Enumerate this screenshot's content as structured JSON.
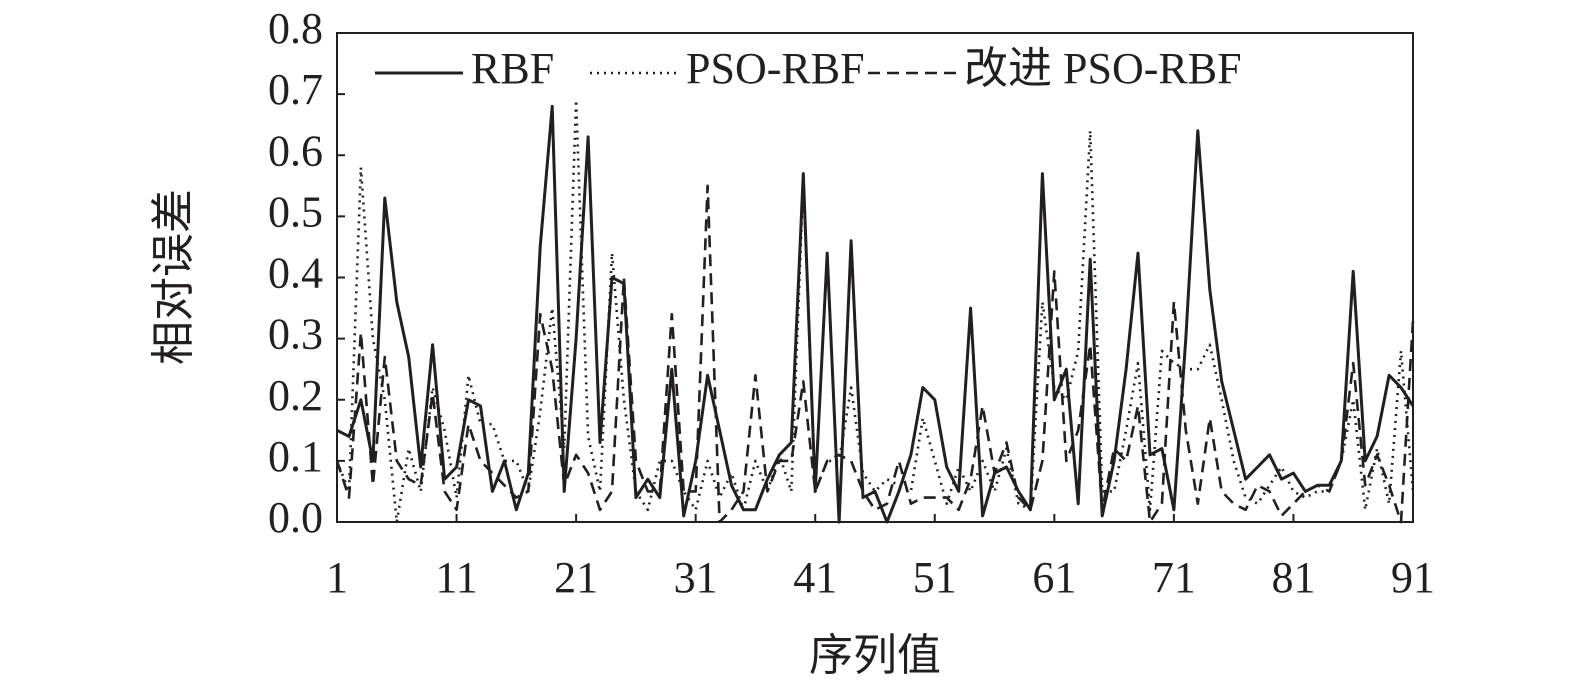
{
  "chart_data": {
    "type": "line",
    "xlabel": "序列值",
    "ylabel": "相对误差",
    "x": [
      1,
      2,
      3,
      4,
      5,
      6,
      7,
      8,
      9,
      10,
      11,
      12,
      13,
      14,
      15,
      16,
      17,
      18,
      19,
      20,
      21,
      22,
      23,
      24,
      25,
      26,
      27,
      28,
      29,
      30,
      31,
      32,
      33,
      34,
      35,
      36,
      37,
      38,
      39,
      40,
      41,
      42,
      43,
      44,
      45,
      46,
      47,
      48,
      49,
      50,
      51,
      52,
      53,
      54,
      55,
      56,
      57,
      58,
      59,
      60,
      61,
      62,
      63,
      64,
      65,
      66,
      67,
      68,
      69,
      70,
      71,
      72,
      73,
      74,
      75,
      76,
      77,
      78,
      79,
      80,
      81,
      82,
      83,
      84,
      85,
      86,
      87,
      88,
      89,
      90,
      91
    ],
    "xlim": [
      1,
      91
    ],
    "xticks": [
      1,
      11,
      21,
      31,
      41,
      51,
      61,
      71,
      81,
      91
    ],
    "ylim": [
      0,
      0.8
    ],
    "yticks": [
      {
        "value": 0,
        "label": "0.0"
      },
      0.1,
      0.2,
      0.3,
      0.4,
      0.5,
      0.6,
      0.7,
      0.8
    ],
    "legend": "top",
    "series": [
      {
        "name": "RBF",
        "color": "#231f20",
        "dash": "solid",
        "values": [
          0.15,
          0.14,
          0.2,
          0.1,
          0.53,
          0.36,
          0.27,
          0.09,
          0.29,
          0.07,
          0.09,
          0.2,
          0.19,
          0.05,
          0.1,
          0.02,
          0.08,
          0.45,
          0.68,
          0.05,
          0.3,
          0.63,
          0.13,
          0.4,
          0.39,
          0.04,
          0.07,
          0.04,
          0.25,
          0.01,
          0.1,
          0.24,
          0.15,
          0.06,
          0.02,
          0.02,
          0.07,
          0.11,
          0.13,
          0.57,
          0.05,
          0.44,
          0.0,
          0.46,
          0.04,
          0.05,
          0.0,
          0.05,
          0.11,
          0.22,
          0.2,
          0.09,
          0.05,
          0.35,
          0.01,
          0.08,
          0.09,
          0.05,
          0.02,
          0.57,
          0.2,
          0.25,
          0.03,
          0.43,
          0.01,
          0.1,
          0.25,
          0.44,
          0.11,
          0.12,
          0.02,
          0.3,
          0.64,
          0.38,
          0.23,
          0.15,
          0.07,
          0.09,
          0.11,
          0.07,
          0.08,
          0.05,
          0.06,
          0.06,
          0.1,
          0.41,
          0.1,
          0.14,
          0.24,
          0.22,
          0.19
        ]
      },
      {
        "name": "PSO-RBF",
        "color": "#231f20",
        "dash": "dotted",
        "values": [
          0.1,
          0.05,
          0.58,
          0.3,
          0.2,
          0.0,
          0.12,
          0.05,
          0.22,
          0.15,
          0.04,
          0.24,
          0.16,
          0.16,
          0.1,
          0.1,
          0.05,
          0.18,
          0.35,
          0.12,
          0.69,
          0.14,
          0.05,
          0.44,
          0.2,
          0.05,
          0.02,
          0.1,
          0.1,
          0.05,
          0.02,
          0.1,
          0.04,
          0.08,
          0.02,
          0.1,
          0.05,
          0.11,
          0.05,
          0.56,
          0.05,
          0.1,
          0.1,
          0.22,
          0.08,
          0.05,
          0.07,
          0.06,
          0.05,
          0.17,
          0.1,
          0.03,
          0.09,
          0.05,
          0.1,
          0.05,
          0.12,
          0.03,
          0.02,
          0.36,
          0.22,
          0.2,
          0.28,
          0.64,
          0.05,
          0.05,
          0.15,
          0.26,
          0.02,
          0.28,
          0.26,
          0.25,
          0.25,
          0.29,
          0.2,
          0.1,
          0.04,
          0.03,
          0.06,
          0.09,
          0.05,
          0.04,
          0.05,
          0.05,
          0.1,
          0.2,
          0.02,
          0.12,
          0.03,
          0.28,
          0.05
        ]
      },
      {
        "name": "改进 PSO-RBF",
        "color": "#231f20",
        "dash": "dashed",
        "values": [
          0.1,
          0.04,
          0.31,
          0.06,
          0.27,
          0.1,
          0.07,
          0.06,
          0.21,
          0.05,
          0.02,
          0.16,
          0.1,
          0.08,
          0.06,
          0.04,
          0.05,
          0.34,
          0.25,
          0.06,
          0.11,
          0.08,
          0.02,
          0.05,
          0.4,
          0.1,
          0.05,
          0.05,
          0.34,
          0.05,
          0.05,
          0.55,
          0.0,
          0.02,
          0.05,
          0.24,
          0.05,
          0.1,
          0.1,
          0.23,
          0.05,
          0.1,
          0.11,
          0.1,
          0.05,
          0.02,
          0.03,
          0.1,
          0.03,
          0.04,
          0.04,
          0.04,
          0.02,
          0.07,
          0.19,
          0.08,
          0.13,
          0.04,
          0.02,
          0.1,
          0.41,
          0.1,
          0.15,
          0.29,
          0.02,
          0.12,
          0.1,
          0.19,
          0.0,
          0.03,
          0.36,
          0.15,
          0.03,
          0.17,
          0.05,
          0.03,
          0.02,
          0.06,
          0.05,
          0.01,
          0.03,
          0.05,
          0.06,
          0.05,
          0.1,
          0.26,
          0.06,
          0.11,
          0.06,
          0.0,
          0.33
        ]
      }
    ]
  }
}
